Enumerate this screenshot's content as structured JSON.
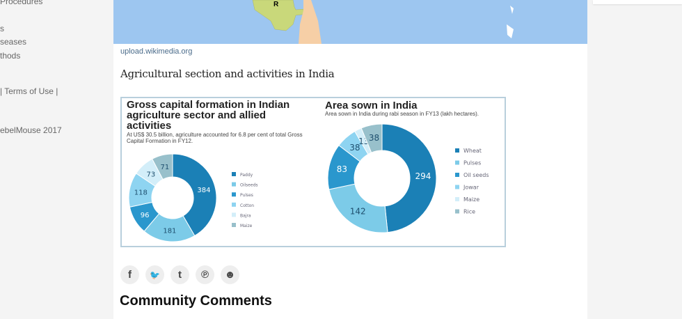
{
  "sidebar": {
    "items": [
      "Procedures",
      "s",
      "seases",
      "thods",
      "| Terms of Use |",
      "ebelMouse 2017"
    ]
  },
  "image_source": "upload.wikimedia.org",
  "caption": "Agricultural section and activities in India",
  "map": {
    "label": "R"
  },
  "chart_data": [
    {
      "type": "pie",
      "donut": true,
      "title": "Gross capital formation in Indian agriculture sector and allied activities",
      "subtitle": "At US$ 30.5 billion, agriculture accounted for 6.8 per cent of total Gross Capital Formation in FY12.",
      "legend_placement": "right",
      "categories": [
        "Paddy",
        "Oilseeds",
        "Pulses",
        "Cotton",
        "Bajra",
        "Maize"
      ],
      "values": [
        384,
        181,
        96,
        118,
        73,
        71
      ],
      "colors": [
        "#1b80b6",
        "#7ccbe8",
        "#2a97cd",
        "#8ed4f1",
        "#d3eef9",
        "#98c0cb"
      ]
    },
    {
      "type": "pie",
      "donut": true,
      "title": "Area sown in India",
      "subtitle": "Area sown in India during rabi season in FY13 (lakh hectares).",
      "legend_placement": "right",
      "categories": [
        "Wheat",
        "Pulses",
        "Oil seeds",
        "Jowar",
        "Maize",
        "Rice"
      ],
      "values": [
        294,
        142,
        83,
        38,
        13,
        38
      ],
      "colors": [
        "#1b80b6",
        "#7ccbe8",
        "#2a97cd",
        "#8ed4f1",
        "#d3eef9",
        "#98c0cb"
      ]
    }
  ],
  "share": [
    {
      "icon": "facebook-icon",
      "glyph": "f"
    },
    {
      "icon": "twitter-icon",
      "glyph": "🐦"
    },
    {
      "icon": "tumblr-icon",
      "glyph": "t"
    },
    {
      "icon": "pinterest-icon",
      "glyph": "℗"
    },
    {
      "icon": "reddit-icon",
      "glyph": "☻"
    }
  ],
  "comments_heading": "Community Comments"
}
